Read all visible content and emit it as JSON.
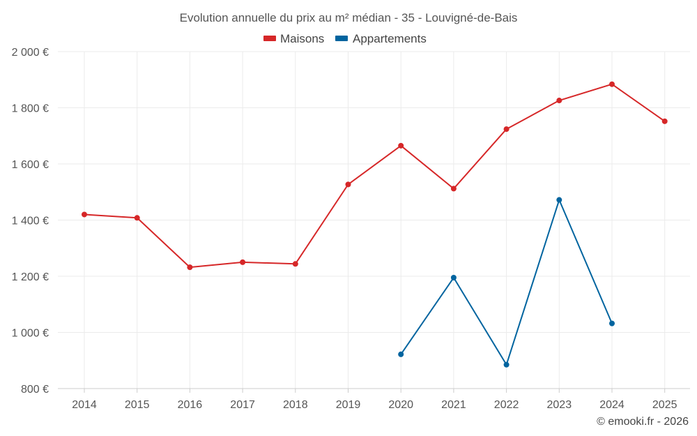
{
  "chart_data": {
    "type": "line",
    "title": "Evolution annuelle du prix au m² médian - 35 - Louvigné-de-Bais",
    "xlabel": "",
    "ylabel": "",
    "categories": [
      "2014",
      "2015",
      "2016",
      "2017",
      "2018",
      "2019",
      "2020",
      "2021",
      "2022",
      "2023",
      "2024",
      "2025"
    ],
    "ylim": [
      800,
      2000
    ],
    "yticks": [
      800,
      1000,
      1200,
      1400,
      1600,
      1800,
      2000
    ],
    "ytick_labels": [
      "800 €",
      "1 000 €",
      "1 200 €",
      "1 400 €",
      "1 600 €",
      "1 800 €",
      "2 000 €"
    ],
    "grid": true,
    "legend_position": "top-center",
    "series": [
      {
        "name": "Maisons",
        "color": "#d62728",
        "values": [
          1420,
          1408,
          1232,
          1250,
          1244,
          1527,
          1665,
          1512,
          1724,
          1826,
          1884,
          1752
        ]
      },
      {
        "name": "Appartements",
        "color": "#00649f",
        "values": [
          null,
          null,
          null,
          null,
          null,
          null,
          922,
          1195,
          885,
          1472,
          1032,
          null
        ]
      }
    ]
  },
  "credit": "© emooki.fr - 2026"
}
